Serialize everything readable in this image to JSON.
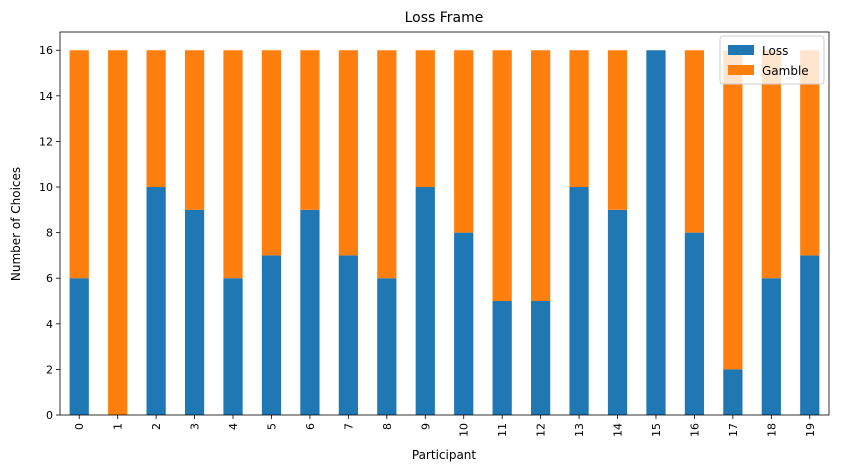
{
  "chart_data": {
    "type": "bar",
    "stacked": true,
    "title": "Loss Frame",
    "xlabel": "Participant",
    "ylabel": "Number of Choices",
    "categories": [
      "0",
      "1",
      "2",
      "3",
      "4",
      "5",
      "6",
      "7",
      "8",
      "9",
      "10",
      "11",
      "12",
      "13",
      "14",
      "15",
      "16",
      "17",
      "18",
      "19"
    ],
    "series": [
      {
        "name": "Loss",
        "color": "#1f77b4",
        "values": [
          6,
          0,
          10,
          9,
          6,
          7,
          9,
          7,
          6,
          10,
          8,
          5,
          5,
          10,
          9,
          16,
          8,
          2,
          6,
          7
        ]
      },
      {
        "name": "Gamble",
        "color": "#ff7f0e",
        "values": [
          10,
          16,
          6,
          7,
          10,
          9,
          7,
          9,
          10,
          6,
          8,
          11,
          11,
          6,
          7,
          0,
          8,
          14,
          10,
          9
        ]
      }
    ],
    "ylim": [
      0,
      16.8
    ],
    "yticks": [
      0,
      2,
      4,
      6,
      8,
      10,
      12,
      14,
      16
    ],
    "grid": false,
    "legend_position": "top-right"
  }
}
